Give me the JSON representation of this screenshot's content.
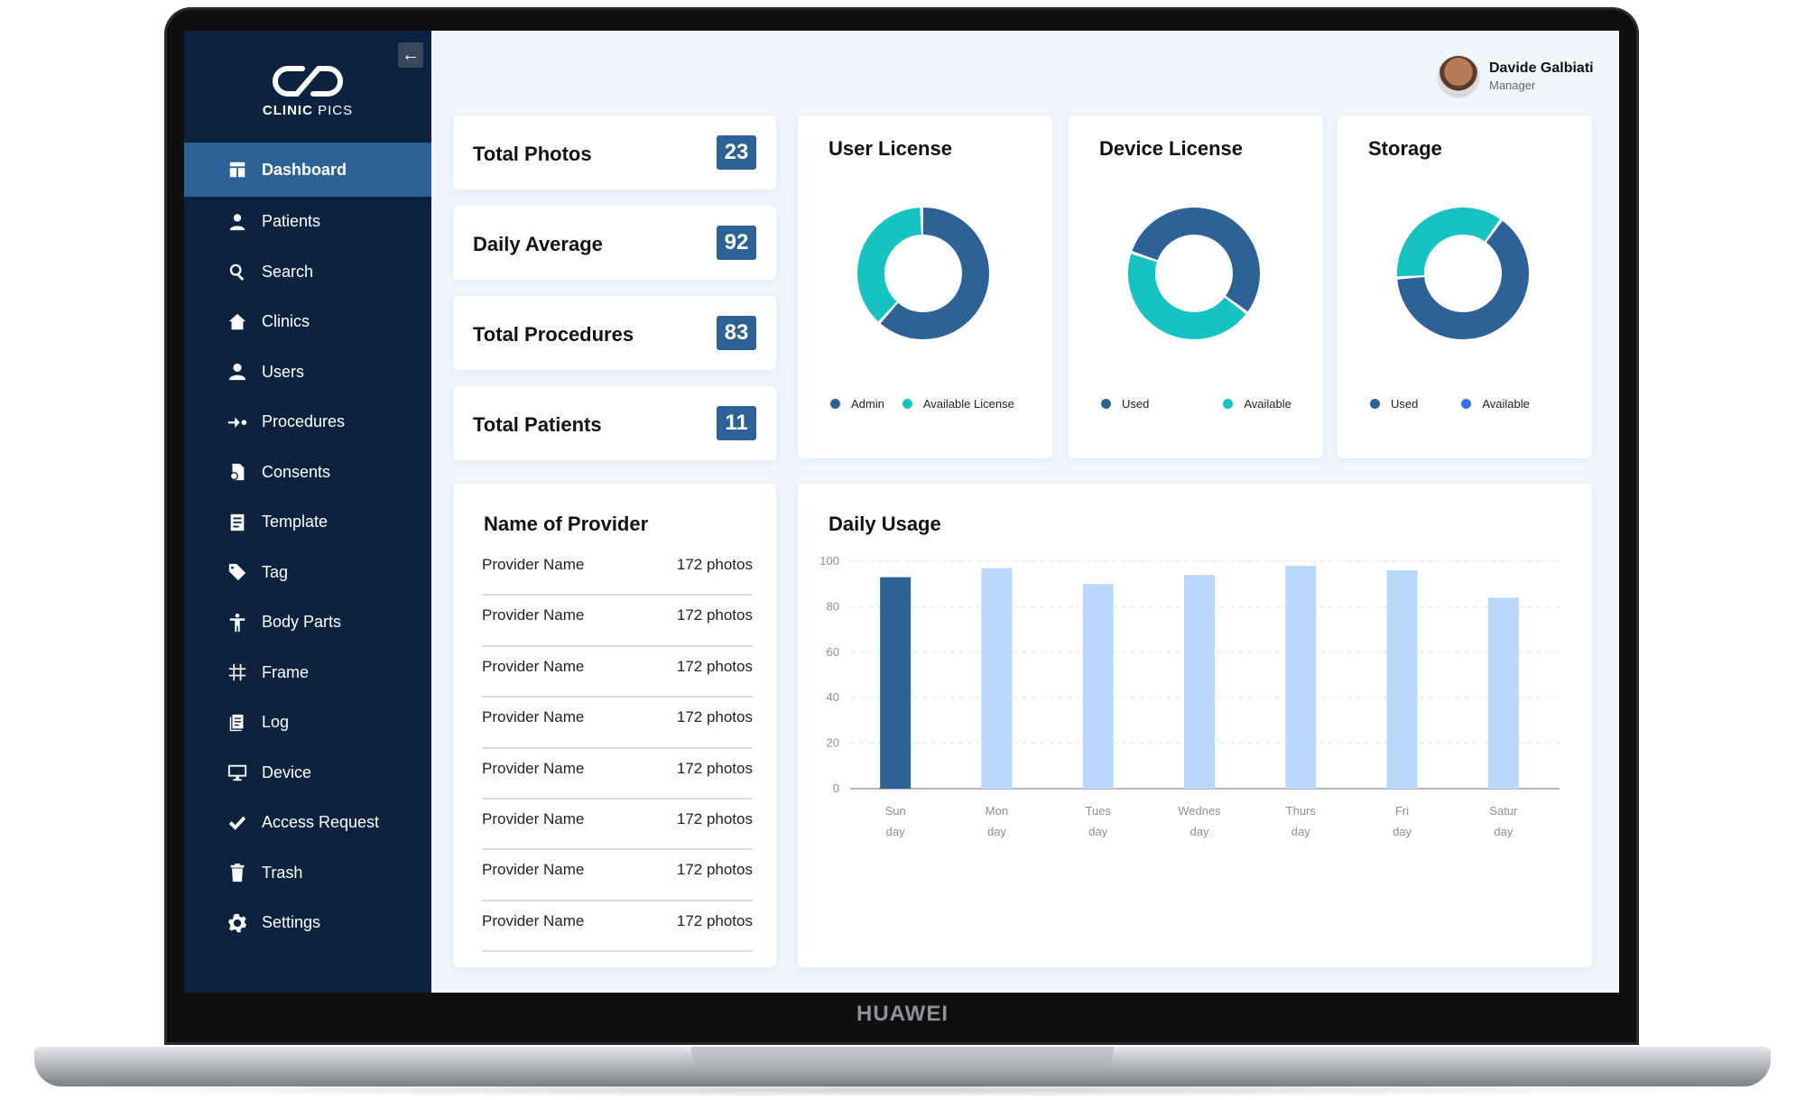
{
  "device": {
    "brand": "HUAWEI"
  },
  "app": {
    "logo_text_bold": "CLINIC",
    "logo_text_light": " PICS"
  },
  "colors": {
    "sidebar": "#0c2340",
    "accent": "#2d6296",
    "teal": "#17c3c2",
    "light_bar": "#b9d8fb",
    "dark_bar": "#2d6296",
    "blue_dot": "#2e73e6"
  },
  "sidebar": {
    "collapse_icon": "arrow-left-icon",
    "items": [
      {
        "label": "Dashboard",
        "icon": "dashboard-icon",
        "active": true
      },
      {
        "label": "Patients",
        "icon": "patient-icon"
      },
      {
        "label": "Search",
        "icon": "search-icon"
      },
      {
        "label": "Clinics",
        "icon": "clinic-house-icon"
      },
      {
        "label": "Users",
        "icon": "user-icon"
      },
      {
        "label": "Procedures",
        "icon": "procedure-arrow-icon"
      },
      {
        "label": "Consents",
        "icon": "consent-icon"
      },
      {
        "label": "Template",
        "icon": "template-icon"
      },
      {
        "label": "Tag",
        "icon": "tag-icon"
      },
      {
        "label": "Body Parts",
        "icon": "body-icon"
      },
      {
        "label": "Frame",
        "icon": "frame-hash-icon"
      },
      {
        "label": "Log",
        "icon": "log-icon"
      },
      {
        "label": "Device",
        "icon": "monitor-icon"
      },
      {
        "label": "Access Request",
        "icon": "checkmark-icon"
      },
      {
        "label": "Trash",
        "icon": "trash-icon"
      },
      {
        "label": "Settings",
        "icon": "gear-icon"
      }
    ]
  },
  "user": {
    "name": "Davide Galbiati",
    "role": "Manager"
  },
  "stats": [
    {
      "label": "Total Photos",
      "value": "23"
    },
    {
      "label": "Daily Average",
      "value": "92"
    },
    {
      "label": "Total Procedures",
      "value": "83"
    },
    {
      "label": "Total Patients",
      "value": "11"
    }
  ],
  "donuts": [
    {
      "title": "User License",
      "segments": [
        {
          "name": "Admin",
          "value": 62,
          "color": "#2d6296"
        },
        {
          "name": "Available License",
          "value": 38,
          "color": "#17c3c2"
        }
      ],
      "start_deg": 0,
      "legend_colors": [
        "#2d6296",
        "#17c3c2"
      ]
    },
    {
      "title": "Device License",
      "segments": [
        {
          "name": "Used",
          "value": 55,
          "color": "#2d6296"
        },
        {
          "name": "Available",
          "value": 45,
          "color": "#17c3c2"
        }
      ],
      "start_deg": -70,
      "legend_colors": [
        "#2d6296",
        "#17c3c2"
      ]
    },
    {
      "title": "Storage",
      "segments": [
        {
          "name": "Used",
          "value": 64,
          "color": "#2d6296"
        },
        {
          "name": "Available",
          "value": 36,
          "color": "#17c3c2"
        }
      ],
      "start_deg": 37,
      "legend_colors": [
        "#2d6296",
        "#2e73e6"
      ]
    }
  ],
  "providers": {
    "title": "Name of Provider",
    "rows": [
      {
        "name": "Provider Name",
        "count": "172 photos"
      },
      {
        "name": "Provider Name",
        "count": "172 photos"
      },
      {
        "name": "Provider Name",
        "count": "172 photos"
      },
      {
        "name": "Provider Name",
        "count": "172 photos"
      },
      {
        "name": "Provider Name",
        "count": "172 photos"
      },
      {
        "name": "Provider Name",
        "count": "172 photos"
      },
      {
        "name": "Provider Name",
        "count": "172 photos"
      },
      {
        "name": "Provider Name",
        "count": "172 photos"
      }
    ]
  },
  "chart_data": {
    "type": "bar",
    "title": "Daily Usage",
    "categories": [
      [
        "Sun",
        "day"
      ],
      [
        "Mon",
        "day"
      ],
      [
        "Tues",
        "day"
      ],
      [
        "Wednes",
        "day"
      ],
      [
        "Thurs",
        "day"
      ],
      [
        "Fri",
        "day"
      ],
      [
        "Satur",
        "day"
      ]
    ],
    "values": [
      93,
      97,
      90,
      94,
      98,
      96,
      84
    ],
    "highlight_index": 0,
    "ylim": [
      0,
      100
    ],
    "yticks": [
      0,
      20,
      40,
      60,
      80,
      100
    ],
    "grid": true,
    "xlabel": "",
    "ylabel": ""
  }
}
